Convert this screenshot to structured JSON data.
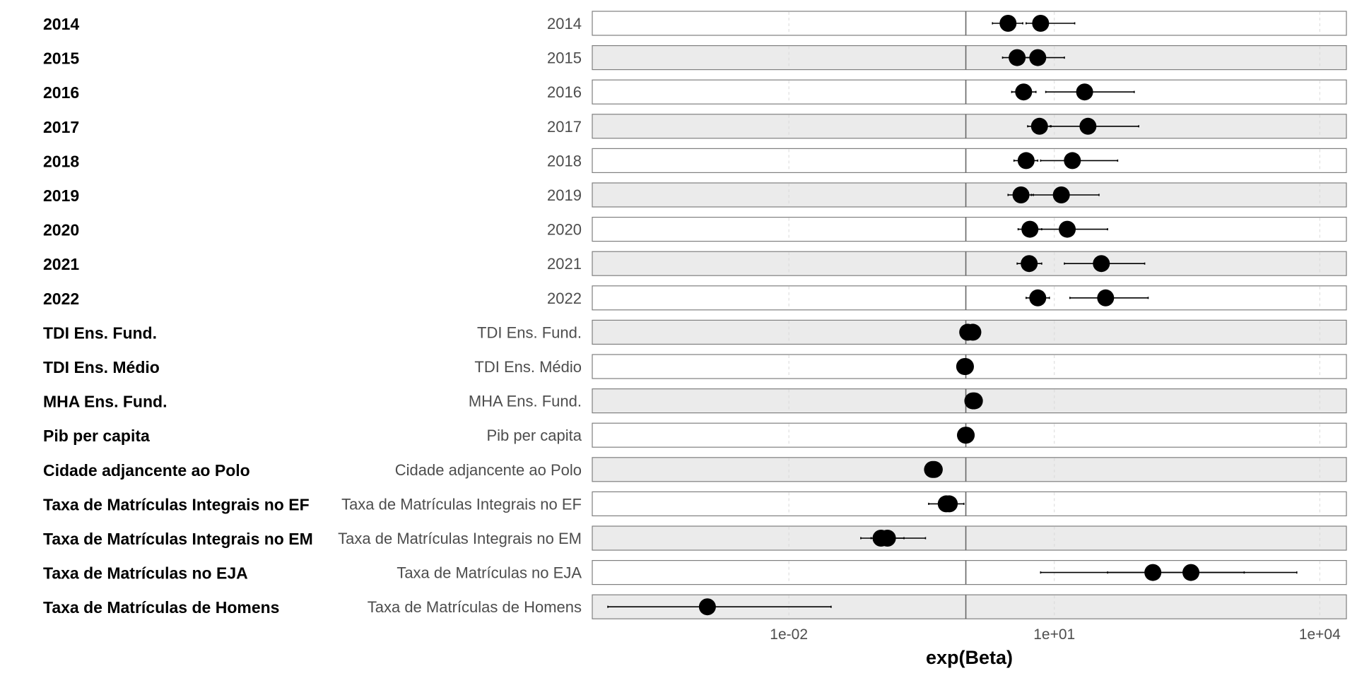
{
  "chart_data": {
    "type": "forest",
    "xlabel": "exp(Beta)",
    "x_scale": "log10",
    "xlim": [
      6e-05,
      20000
    ],
    "reference_line": 1,
    "x_ticks": [
      {
        "value": 0.01,
        "label": "1e-02"
      },
      {
        "value": 10,
        "label": "1e+01"
      },
      {
        "value": 10000,
        "label": "1e+04"
      }
    ],
    "grid": true,
    "legend": "none",
    "colors": {
      "point": "#000000",
      "band_even": "#ffffff",
      "band_odd": "#ebebeb",
      "border": "#7f7f7f",
      "reference": "#666666",
      "grid": "#d9d9d9"
    },
    "rows": [
      {
        "label": "2014",
        "estimates": [
          {
            "value": 3.0,
            "lo": 2.0,
            "hi": 4.4
          },
          {
            "value": 7.0,
            "lo": 4.8,
            "hi": 17.0
          }
        ]
      },
      {
        "label": "2015",
        "estimates": [
          {
            "value": 3.8,
            "lo": 2.6,
            "hi": 5.5
          },
          {
            "value": 6.5,
            "lo": 4.4,
            "hi": 13.0
          }
        ]
      },
      {
        "label": "2016",
        "estimates": [
          {
            "value": 4.5,
            "lo": 3.3,
            "hi": 6.2
          },
          {
            "value": 22.0,
            "lo": 8.0,
            "hi": 80.0
          }
        ]
      },
      {
        "label": "2017",
        "estimates": [
          {
            "value": 6.8,
            "lo": 5.0,
            "hi": 9.2
          },
          {
            "value": 24.0,
            "lo": 9.0,
            "hi": 90.0
          }
        ]
      },
      {
        "label": "2018",
        "estimates": [
          {
            "value": 4.8,
            "lo": 3.5,
            "hi": 6.5
          },
          {
            "value": 16.0,
            "lo": 7.0,
            "hi": 52.0
          }
        ]
      },
      {
        "label": "2019",
        "estimates": [
          {
            "value": 4.2,
            "lo": 3.0,
            "hi": 5.8
          },
          {
            "value": 12.0,
            "lo": 5.5,
            "hi": 32.0
          }
        ]
      },
      {
        "label": "2020",
        "estimates": [
          {
            "value": 5.3,
            "lo": 3.9,
            "hi": 7.2
          },
          {
            "value": 14.0,
            "lo": 6.5,
            "hi": 40.0
          }
        ]
      },
      {
        "label": "2021",
        "estimates": [
          {
            "value": 5.2,
            "lo": 3.8,
            "hi": 7.2
          },
          {
            "value": 34.0,
            "lo": 13.0,
            "hi": 105.0
          }
        ]
      },
      {
        "label": "2022",
        "estimates": [
          {
            "value": 6.5,
            "lo": 4.8,
            "hi": 8.8
          },
          {
            "value": 38.0,
            "lo": 15.0,
            "hi": 115.0
          }
        ]
      },
      {
        "label": "TDI Ens. Fund.",
        "estimates": [
          {
            "value": 1.05,
            "lo": 0.95,
            "hi": 1.15
          },
          {
            "value": 1.2,
            "lo": 1.1,
            "hi": 1.32
          }
        ]
      },
      {
        "label": "TDI Ens. Médio",
        "estimates": [
          {
            "value": 0.97,
            "lo": 0.93,
            "hi": 1.02
          },
          {
            "value": 0.99,
            "lo": 0.95,
            "hi": 1.04
          }
        ]
      },
      {
        "label": "MHA Ens. Fund.",
        "estimates": [
          {
            "value": 1.2,
            "lo": 1.12,
            "hi": 1.3
          },
          {
            "value": 1.25,
            "lo": 1.16,
            "hi": 1.35
          }
        ]
      },
      {
        "label": "Pib per capita",
        "estimates": [
          {
            "value": 0.99,
            "lo": 0.95,
            "hi": 1.04
          },
          {
            "value": 1.01,
            "lo": 0.97,
            "hi": 1.06
          }
        ]
      },
      {
        "label": "Cidade adjancente ao Polo",
        "estimates": [
          {
            "value": 0.42,
            "lo": 0.38,
            "hi": 0.47
          },
          {
            "value": 0.44,
            "lo": 0.4,
            "hi": 0.49
          }
        ]
      },
      {
        "label": "Taxa de Matrículas Integrais no EF",
        "estimates": [
          {
            "value": 0.6,
            "lo": 0.38,
            "hi": 0.95
          },
          {
            "value": 0.65,
            "lo": 0.55,
            "hi": 0.78
          }
        ]
      },
      {
        "label": "Taxa de Matrículas Integrais no EM",
        "estimates": [
          {
            "value": 0.11,
            "lo": 0.065,
            "hi": 0.2
          },
          {
            "value": 0.13,
            "lo": 0.085,
            "hi": 0.35
          }
        ]
      },
      {
        "label": "Taxa de Matrículas no EJA",
        "estimates": [
          {
            "value": 130.0,
            "lo": 7.0,
            "hi": 1400.0
          },
          {
            "value": 350.0,
            "lo": 40.0,
            "hi": 5500.0
          }
        ]
      },
      {
        "label": "Taxa de Matrículas de Homens",
        "estimates": [
          {
            "value": 0.0012,
            "lo": 9e-05,
            "hi": 0.03
          }
        ]
      }
    ]
  }
}
